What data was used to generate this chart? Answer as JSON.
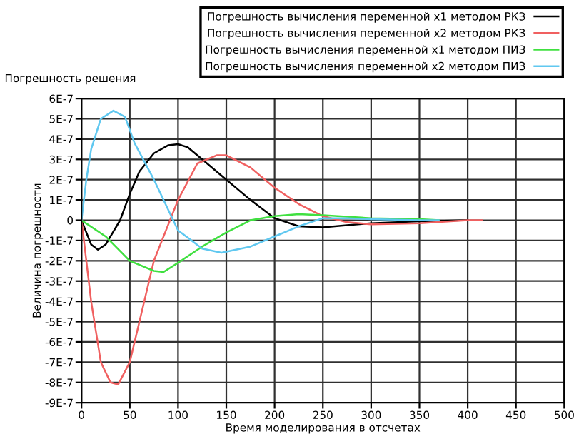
{
  "chart_data": {
    "type": "line",
    "title": "Погрешность решения",
    "xlabel": "Время моделирования в отсчетах",
    "ylabel": "Величина погрешности",
    "xlim": [
      0,
      500
    ],
    "xticks": [
      0,
      50,
      100,
      150,
      200,
      250,
      300,
      350,
      400,
      450,
      500
    ],
    "ylim": [
      -9e-07,
      6e-07
    ],
    "yticks": [
      {
        "value": -9e-07,
        "label": "-9E-7"
      },
      {
        "value": -8e-07,
        "label": "-8E-7"
      },
      {
        "value": -7e-07,
        "label": "-7E-7"
      },
      {
        "value": -6e-07,
        "label": "-6E-7"
      },
      {
        "value": -5e-07,
        "label": "-5E-7"
      },
      {
        "value": -4e-07,
        "label": "-4E-7"
      },
      {
        "value": -3e-07,
        "label": "-3E-7"
      },
      {
        "value": -2e-07,
        "label": "-2E-7"
      },
      {
        "value": -1e-07,
        "label": "-1E-7"
      },
      0,
      {
        "value": 1e-07,
        "label": "1E-7"
      },
      {
        "value": 2e-07,
        "label": "2E-7"
      },
      {
        "value": 3e-07,
        "label": "3E-7"
      },
      {
        "value": 4e-07,
        "label": "4E-7"
      },
      {
        "value": 5e-07,
        "label": "5E-7"
      },
      {
        "value": 6e-07,
        "label": "6E-7"
      }
    ],
    "grid": true,
    "legend": "top",
    "marker": "none",
    "line_style": "solid",
    "series": [
      {
        "name": "Погрешность вычисления переменной x1 методом РКЗ",
        "color": "#000000",
        "x": [
          0,
          10,
          17,
          25,
          40,
          50,
          60,
          75,
          90,
          100,
          110,
          125,
          150,
          175,
          200,
          225,
          250,
          275,
          300,
          350,
          400
        ],
        "values": [
          0,
          -1.2e-07,
          -1.45e-07,
          -1.2e-07,
          0,
          1.3e-07,
          2.4e-07,
          3.3e-07,
          3.7e-07,
          3.75e-07,
          3.6e-07,
          3e-07,
          2e-07,
          1e-07,
          1e-08,
          -3e-08,
          -3.5e-08,
          -2.5e-08,
          -1.5e-08,
          -5e-09,
          0
        ]
      },
      {
        "name": "Погрешность вычисления переменной x2 методом РКЗ",
        "color": "#f06060",
        "x": [
          0,
          10,
          20,
          30,
          38,
          50,
          60,
          75,
          100,
          120,
          140,
          150,
          175,
          200,
          225,
          250,
          275,
          300,
          350,
          400,
          415
        ],
        "values": [
          0,
          -4e-07,
          -7e-07,
          -8e-07,
          -8.1e-07,
          -7e-07,
          -5e-07,
          -2e-07,
          1e-07,
          2.8e-07,
          3.2e-07,
          3.2e-07,
          2.6e-07,
          1.6e-07,
          8e-08,
          2e-08,
          -1e-08,
          -2e-08,
          -1.5e-08,
          0,
          0
        ]
      },
      {
        "name": "Погрешность вычисления переменной x1 методом ПИЗ",
        "color": "#40e040",
        "x": [
          0,
          25,
          50,
          75,
          85,
          100,
          125,
          150,
          175,
          200,
          225,
          250,
          300,
          350,
          370
        ],
        "values": [
          0,
          -8e-08,
          -2e-07,
          -2.5e-07,
          -2.55e-07,
          -2.1e-07,
          -1.3e-07,
          -6e-08,
          0,
          2e-08,
          3e-08,
          2.5e-08,
          1e-08,
          5e-09,
          0
        ]
      },
      {
        "name": "Погрешность вычисления переменной x2 методом ПИЗ",
        "color": "#60c8f0",
        "x": [
          0,
          5,
          10,
          20,
          33,
          45,
          55,
          75,
          100,
          125,
          145,
          175,
          200,
          225,
          250,
          275,
          300,
          350,
          370
        ],
        "values": [
          0,
          2e-07,
          3.5e-07,
          5e-07,
          5.4e-07,
          5.1e-07,
          3.8e-07,
          2e-07,
          -5e-08,
          -1.4e-07,
          -1.6e-07,
          -1.3e-07,
          -8e-08,
          -3e-08,
          1e-08,
          1e-08,
          5e-09,
          0,
          0
        ]
      }
    ]
  }
}
